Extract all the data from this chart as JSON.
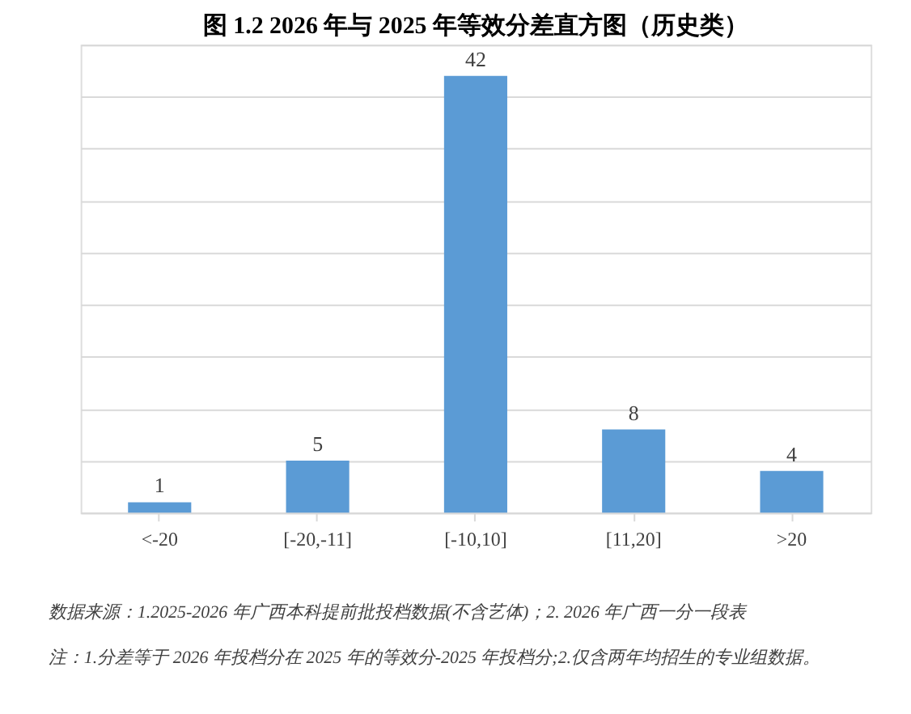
{
  "chart_data": {
    "type": "bar",
    "title": "图 1.2 2026 年与 2025 年等效分差直方图（历史类）",
    "categories": [
      "<-20",
      "[-20,-11]",
      "[-10,10]",
      "[11,20]",
      ">20"
    ],
    "values": [
      1,
      5,
      42,
      8,
      4
    ],
    "color": "#5b9bd5",
    "data_labels": true,
    "ylim": [
      0,
      45
    ],
    "grid": "y",
    "tick_labels": "x",
    "annotations": [
      "数据来源：1.2025-2026 年广西本科提前批投档数据(不含艺体)；2. 2026 年广西一分一段表",
      "注：1.分差等于 2026 年投档分在 2025 年的等效分-2025 年投档分;2.仅含两年均招生的专业组数据。"
    ]
  }
}
